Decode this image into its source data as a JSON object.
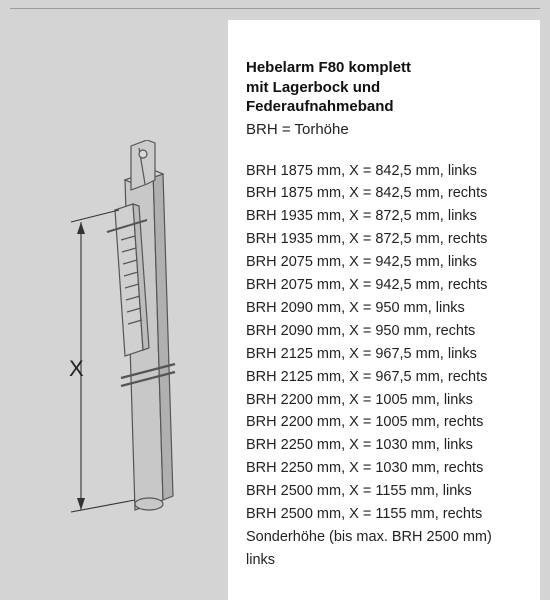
{
  "title": {
    "line1": "Hebelarm F80 komplett",
    "line2": "mit Lagerbock und",
    "line3": "Federaufnahmeband"
  },
  "subtitle": "BRH = Torhöhe",
  "specs": [
    "BRH 1875 mm, X = 842,5 mm, links",
    "BRH 1875 mm, X = 842,5 mm, rechts",
    "BRH 1935 mm, X = 872,5 mm, links",
    "BRH 1935 mm, X = 872,5 mm, rechts",
    "BRH 2075 mm, X = 942,5 mm, links",
    "BRH 2075 mm, X = 942,5 mm, rechts",
    "BRH 2090 mm, X = 950 mm, links",
    "BRH 2090 mm, X = 950 mm, rechts",
    "BRH 2125 mm, X = 967,5 mm, links",
    "BRH 2125 mm, X = 967,5 mm, rechts",
    "BRH 2200 mm, X = 1005 mm, links",
    "BRH 2200 mm, X = 1005 mm, rechts",
    "BRH 2250 mm, X = 1030 mm, links",
    "BRH 2250 mm, X = 1030 mm, rechts",
    "BRH 2500 mm, X = 1155 mm, links",
    "BRH 2500 mm, X = 1155 mm, rechts",
    "Sonderhöhe (bis max. BRH 2500 mm)",
    "links"
  ],
  "drawing": {
    "stroke": "#555555",
    "fill": "#c0c0c0",
    "fill_light": "#d8d8d8",
    "dim_label": "X"
  }
}
